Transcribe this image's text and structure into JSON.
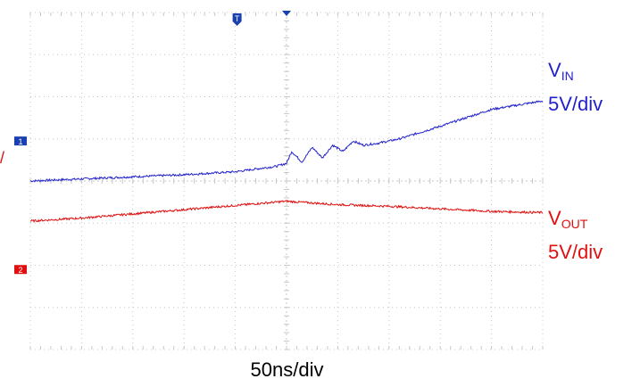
{
  "chart_data": {
    "type": "line",
    "x_unit": "div",
    "y_unit": "div",
    "xlim": [
      -5,
      5
    ],
    "ylim": [
      -4,
      4
    ],
    "timebase": "50ns/div",
    "grid": true,
    "series": [
      {
        "name": "V₁ₙ",
        "scale": "5V/div",
        "color": "#2222cc",
        "channel_marker": "1",
        "ground_level": 0.95,
        "points": [
          [
            -5.0,
            0.0
          ],
          [
            -4.0,
            0.05
          ],
          [
            -3.0,
            0.1
          ],
          [
            -2.0,
            0.15
          ],
          [
            -1.0,
            0.22
          ],
          [
            -0.2,
            0.35
          ],
          [
            0.0,
            0.42
          ],
          [
            0.1,
            0.7
          ],
          [
            0.3,
            0.45
          ],
          [
            0.5,
            0.8
          ],
          [
            0.7,
            0.55
          ],
          [
            0.9,
            0.85
          ],
          [
            1.1,
            0.7
          ],
          [
            1.3,
            0.95
          ],
          [
            1.5,
            0.85
          ],
          [
            1.8,
            0.9
          ],
          [
            2.2,
            1.0
          ],
          [
            3.0,
            1.3
          ],
          [
            4.0,
            1.7
          ],
          [
            5.0,
            1.9
          ]
        ]
      },
      {
        "name": "Vₒᵤₜ",
        "scale": "5V/div",
        "color": "#e01010",
        "channel_marker": "2",
        "ground_level": -2.1,
        "points": [
          [
            -5.0,
            -0.95
          ],
          [
            -4.0,
            -0.88
          ],
          [
            -3.0,
            -0.78
          ],
          [
            -2.0,
            -0.68
          ],
          [
            -1.0,
            -0.58
          ],
          [
            0.0,
            -0.48
          ],
          [
            1.0,
            -0.56
          ],
          [
            2.0,
            -0.6
          ],
          [
            3.0,
            -0.66
          ],
          [
            4.0,
            -0.72
          ],
          [
            5.0,
            -0.75
          ]
        ]
      }
    ],
    "trigger_marker": "T",
    "left_edge_mark": "/"
  },
  "labels": {
    "vin_name_main": "V",
    "vin_name_sub": "IN",
    "vin_scale": "5V/div",
    "vout_name_main": "V",
    "vout_name_sub": "OUT",
    "vout_scale": "5V/div",
    "timebase": "50ns/div",
    "left_edge_mark": "/"
  },
  "colors": {
    "vin": "#2222cc",
    "vout": "#e01010",
    "grid": "#c8c8c8",
    "marker_blue": "#1a3fb0",
    "marker_red": "#e01010"
  }
}
